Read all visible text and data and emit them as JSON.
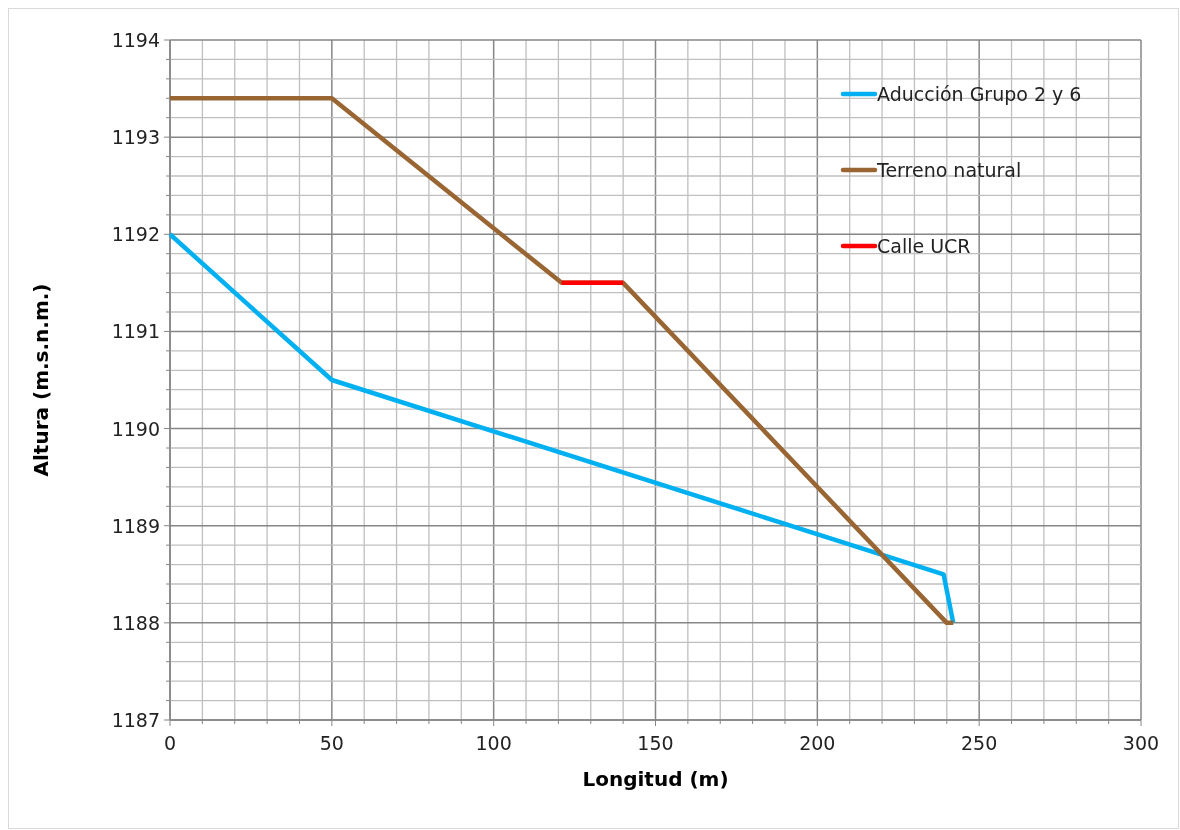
{
  "chart_data": {
    "type": "line",
    "xlabel": "Longitud (m)",
    "ylabel": "Altura (m.s.n.m.)",
    "xlim": [
      0,
      300
    ],
    "xticks": [
      0,
      {
        "value": 10,
        "label": null
      },
      {
        "value": 20,
        "label": null
      },
      {
        "value": 30,
        "label": null
      },
      {
        "value": 40,
        "label": null
      },
      50,
      {
        "value": 60,
        "label": null
      },
      {
        "value": 70,
        "label": null
      },
      {
        "value": 80,
        "label": null
      },
      {
        "value": 90,
        "label": null
      },
      100,
      {
        "value": 110,
        "label": null
      },
      {
        "value": 120,
        "label": null
      },
      {
        "value": 130,
        "label": null
      },
      {
        "value": 140,
        "label": null
      },
      150,
      {
        "value": 160,
        "label": null
      },
      {
        "value": 170,
        "label": null
      },
      {
        "value": 180,
        "label": null
      },
      {
        "value": 190,
        "label": null
      },
      200,
      {
        "value": 210,
        "label": null
      },
      {
        "value": 220,
        "label": null
      },
      {
        "value": 230,
        "label": null
      },
      {
        "value": 240,
        "label": null
      },
      250,
      {
        "value": 260,
        "label": null
      },
      {
        "value": 270,
        "label": null
      },
      {
        "value": 280,
        "label": null
      },
      {
        "value": 290,
        "label": null
      },
      300
    ],
    "ylim": [
      1187,
      1194
    ],
    "yticks": [
      1187,
      {
        "value": 1187.2,
        "label": null
      },
      {
        "value": 1187.4,
        "label": null
      },
      {
        "value": 1187.6,
        "label": null
      },
      {
        "value": 1187.8,
        "label": null
      },
      1188,
      {
        "value": 1188.2,
        "label": null
      },
      {
        "value": 1188.4,
        "label": null
      },
      {
        "value": 1188.6,
        "label": null
      },
      {
        "value": 1188.8,
        "label": null
      },
      1189,
      {
        "value": 1189.2,
        "label": null
      },
      {
        "value": 1189.4,
        "label": null
      },
      {
        "value": 1189.6,
        "label": null
      },
      {
        "value": 1189.8,
        "label": null
      },
      1190,
      {
        "value": 1190.2,
        "label": null
      },
      {
        "value": 1190.4,
        "label": null
      },
      {
        "value": 1190.6,
        "label": null
      },
      {
        "value": 1190.8,
        "label": null
      },
      1191,
      {
        "value": 1191.2,
        "label": null
      },
      {
        "value": 1191.4,
        "label": null
      },
      {
        "value": 1191.6,
        "label": null
      },
      {
        "value": 1191.8,
        "label": null
      },
      1192,
      {
        "value": 1192.2,
        "label": null
      },
      {
        "value": 1192.4,
        "label": null
      },
      {
        "value": 1192.6,
        "label": null
      },
      {
        "value": 1192.8,
        "label": null
      },
      1193,
      {
        "value": 1193.2,
        "label": null
      },
      {
        "value": 1193.4,
        "label": null
      },
      {
        "value": 1193.6,
        "label": null
      },
      {
        "value": 1193.8,
        "label": null
      },
      1194
    ],
    "grid": true,
    "legend": "top right",
    "marker": "none",
    "line_style": "solid",
    "series": [
      {
        "name": "Aducción Grupo 2 y 6",
        "color": "#00b0f0",
        "x": [
          0,
          50,
          239,
          242
        ],
        "values": [
          1192,
          1190.5,
          1188.5,
          1188
        ]
      },
      {
        "name": "Terreno natural",
        "color": "#996633",
        "x": [
          0,
          50,
          121,
          140,
          240,
          242
        ],
        "values": [
          1193.4,
          1193.4,
          1191.5,
          1191.5,
          1188,
          1188
        ]
      },
      {
        "name": "Calle UCR",
        "color": "#ff0000",
        "x": [
          121,
          140
        ],
        "values": [
          1191.5,
          1191.5
        ]
      }
    ]
  }
}
